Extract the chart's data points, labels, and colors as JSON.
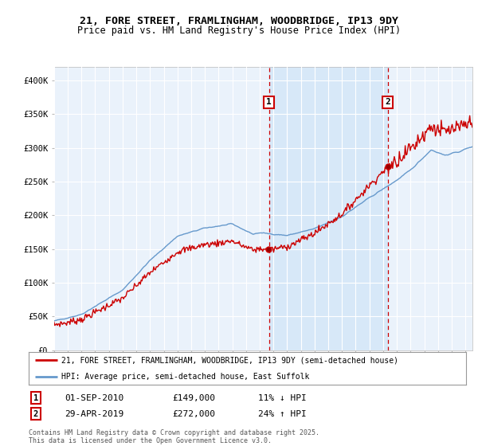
{
  "title_line1": "21, FORE STREET, FRAMLINGHAM, WOODBRIDGE, IP13 9DY",
  "title_line2": "Price paid vs. HM Land Registry's House Price Index (HPI)",
  "background_color": "#ffffff",
  "plot_bg_color": "#dce8f5",
  "plot_bg_color2": "#eaf2fb",
  "grid_color": "#ffffff",
  "shade_color": "#d0e4f7",
  "legend_line1": "21, FORE STREET, FRAMLINGHAM, WOODBRIDGE, IP13 9DY (semi-detached house)",
  "legend_line2": "HPI: Average price, semi-detached house, East Suffolk",
  "sale1_date": "01-SEP-2010",
  "sale1_price": "£149,000",
  "sale1_hpi": "11% ↓ HPI",
  "sale2_date": "29-APR-2019",
  "sale2_price": "£272,000",
  "sale2_hpi": "24% ↑ HPI",
  "footer": "Contains HM Land Registry data © Crown copyright and database right 2025.\nThis data is licensed under the Open Government Licence v3.0.",
  "property_color": "#cc0000",
  "hpi_color": "#6699cc",
  "sale1_x": 2010.67,
  "sale2_x": 2019.33,
  "ylim_min": 0,
  "ylim_max": 420000,
  "xlim_min": 1995.0,
  "xlim_max": 2025.5
}
